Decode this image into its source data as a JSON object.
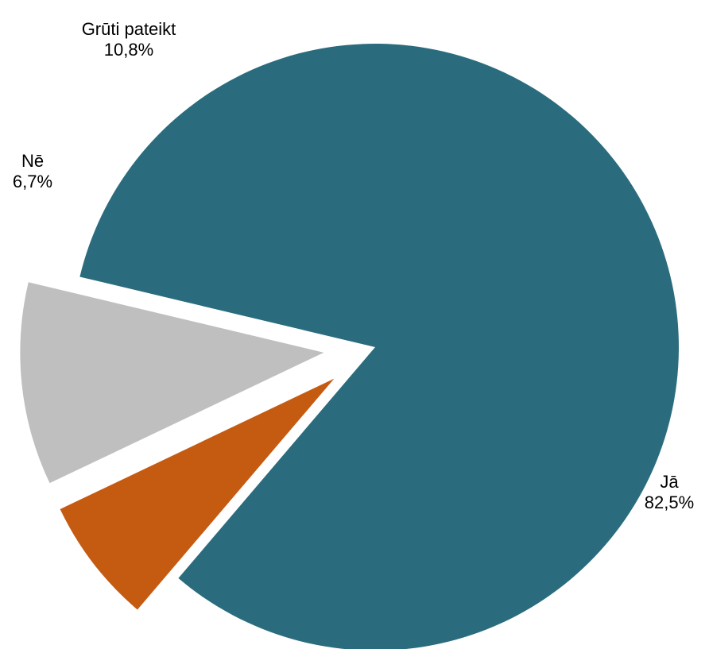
{
  "chart_data": {
    "type": "pie",
    "slices": [
      {
        "name": "Jā",
        "value": 82.5,
        "label": "82,5%",
        "color": "#2a6c7d",
        "exploded": false
      },
      {
        "name": "Nē",
        "value": 6.7,
        "label": "6,7%",
        "color": "#c55a11",
        "exploded": true
      },
      {
        "name": "Grūti pateikt",
        "value": 10.8,
        "label": "10,8%",
        "color": "#bfbfbf",
        "exploded": true
      }
    ],
    "legend": "none"
  }
}
